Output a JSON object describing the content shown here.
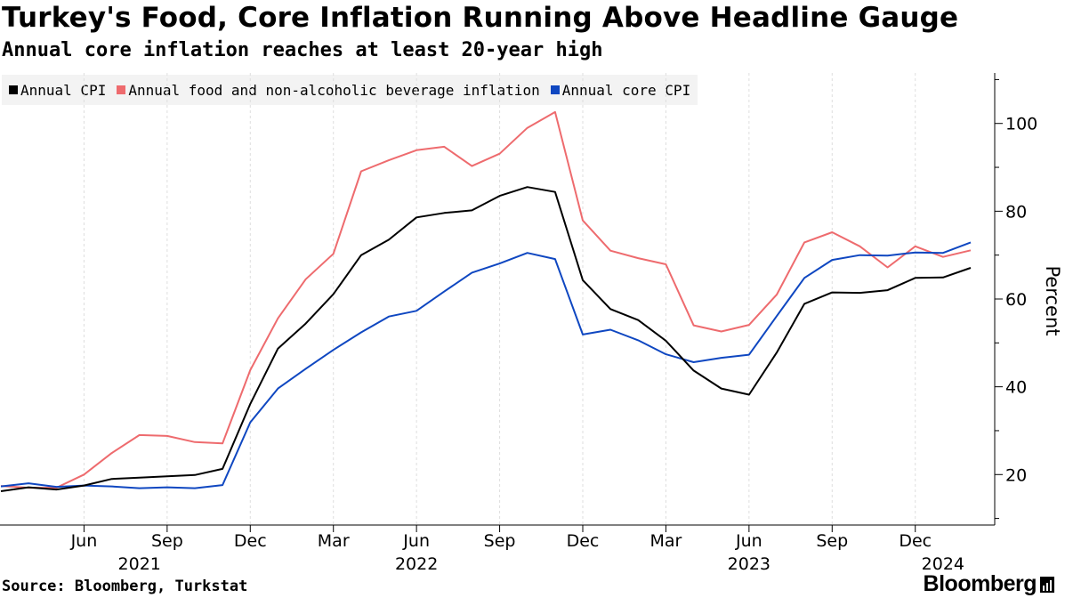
{
  "header": {
    "title": "Turkey's Food, Core Inflation Running Above Headline Gauge",
    "subtitle": "Annual core inflation reaches at least 20-year high"
  },
  "footer": {
    "source": "Source: Bloomberg, Turkstat",
    "brand": "Bloomberg"
  },
  "chart_data": {
    "type": "line",
    "x": [
      "2021-03",
      "2021-04",
      "2021-05",
      "2021-06",
      "2021-07",
      "2021-08",
      "2021-09",
      "2021-10",
      "2021-11",
      "2021-12",
      "2022-01",
      "2022-02",
      "2022-03",
      "2022-04",
      "2022-05",
      "2022-06",
      "2022-07",
      "2022-08",
      "2022-09",
      "2022-10",
      "2022-11",
      "2022-12",
      "2023-01",
      "2023-02",
      "2023-03",
      "2023-04",
      "2023-05",
      "2023-06",
      "2023-07",
      "2023-08",
      "2023-09",
      "2023-10",
      "2023-11",
      "2023-12",
      "2024-01",
      "2024-02"
    ],
    "series": [
      {
        "name": "Annual CPI",
        "color": "#000000",
        "values": [
          16.2,
          17.1,
          16.6,
          17.5,
          19.0,
          19.3,
          19.6,
          19.9,
          21.3,
          36.1,
          48.7,
          54.4,
          61.1,
          70.0,
          73.5,
          78.6,
          79.6,
          80.2,
          83.5,
          85.5,
          84.4,
          64.3,
          57.7,
          55.2,
          50.5,
          43.7,
          39.6,
          38.2,
          47.8,
          58.9,
          61.5,
          61.4,
          62.0,
          64.8,
          64.9,
          67.1
        ]
      },
      {
        "name": "Annual food and non-alcoholic beverage inflation",
        "color": "#ee6b6e",
        "values": [
          17.4,
          17.0,
          17.0,
          20.0,
          24.9,
          29.0,
          28.8,
          27.4,
          27.1,
          43.8,
          55.6,
          64.5,
          70.3,
          89.1,
          91.6,
          93.9,
          94.7,
          90.3,
          93.1,
          99.0,
          102.6,
          77.9,
          71.0,
          69.3,
          67.9,
          54.0,
          52.6,
          54.1,
          61.0,
          72.9,
          75.2,
          72.0,
          67.2,
          72.0,
          69.6,
          71.1
        ]
      },
      {
        "name": "Annual core CPI",
        "color": "#0f47c1",
        "values": [
          17.3,
          18.0,
          17.2,
          17.5,
          17.3,
          16.9,
          17.1,
          16.9,
          17.6,
          31.9,
          39.6,
          44.1,
          48.4,
          52.4,
          56.0,
          57.3,
          61.7,
          66.0,
          68.1,
          70.5,
          69.1,
          51.9,
          53.0,
          50.6,
          47.4,
          45.6,
          46.6,
          47.3,
          56.1,
          64.8,
          68.9,
          70.0,
          69.9,
          70.6,
          70.5,
          72.9
        ]
      }
    ],
    "ylabel": "Percent",
    "ylim": [
      8.5,
      111.5
    ],
    "yticks": [
      20,
      40,
      60,
      80,
      100
    ],
    "xticks": [
      {
        "label": "Jun",
        "at": "2021-06"
      },
      {
        "label": "Sep",
        "at": "2021-09"
      },
      {
        "label": "Dec",
        "at": "2021-12"
      },
      {
        "label": "Mar",
        "at": "2022-03"
      },
      {
        "label": "Jun",
        "at": "2022-06"
      },
      {
        "label": "Sep",
        "at": "2022-09"
      },
      {
        "label": "Dec",
        "at": "2022-12"
      },
      {
        "label": "Mar",
        "at": "2023-03"
      },
      {
        "label": "Jun",
        "at": "2023-06"
      },
      {
        "label": "Sep",
        "at": "2023-09"
      },
      {
        "label": "Dec",
        "at": "2023-12"
      }
    ],
    "year_labels": [
      {
        "label": "2021",
        "at": "2021-08"
      },
      {
        "label": "2022",
        "at": "2022-06"
      },
      {
        "label": "2023",
        "at": "2023-06"
      },
      {
        "label": "2024",
        "at": "2024-01"
      }
    ],
    "xlim": [
      "2021-03",
      "2024-04"
    ],
    "grid": "vertical",
    "legend": "top-left",
    "y_axis_side": "right"
  }
}
